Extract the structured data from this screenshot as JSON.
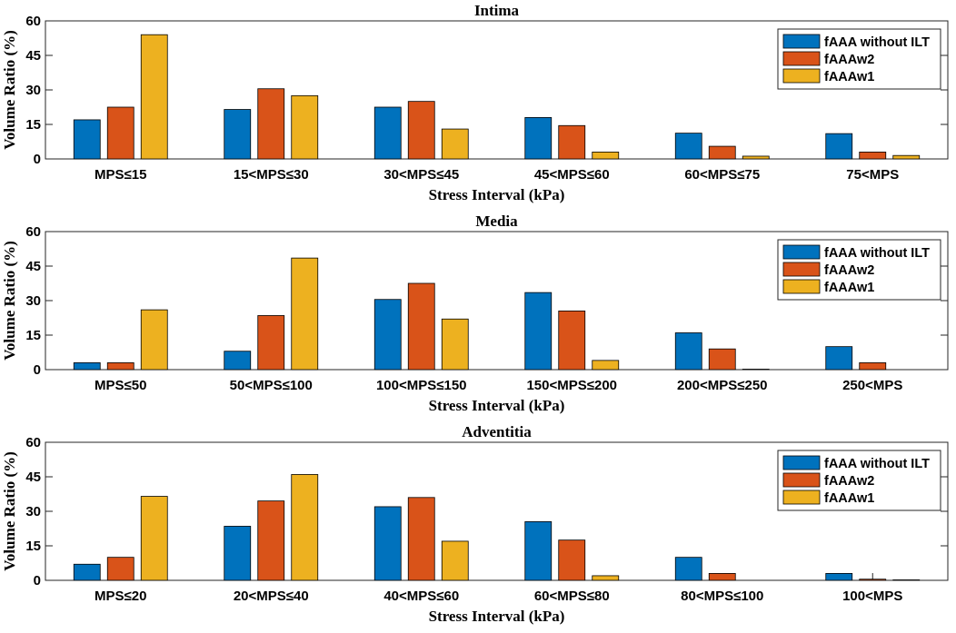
{
  "chart_data": [
    {
      "type": "bar",
      "title": "Intima",
      "xlabel": "Stress Interval (kPa)",
      "ylabel": "Volume Ratio (%)",
      "ylim": [
        0,
        60
      ],
      "yticks": [
        "0",
        "15",
        "30",
        "45",
        "60"
      ],
      "categories": [
        "MPS≤15",
        "15<MPS≤30",
        "30<MPS≤45",
        "45<MPS≤60",
        "60<MPS≤75",
        "75<MPS"
      ],
      "series": [
        {
          "name": "fAAA without ILT",
          "color": "#0072BD",
          "values": [
            17,
            21.5,
            22.5,
            18,
            11.2,
            11
          ]
        },
        {
          "name": "fAAAw2",
          "color": "#D95319",
          "values": [
            22.5,
            30.5,
            25,
            14.5,
            5.5,
            3
          ]
        },
        {
          "name": "fAAAw1",
          "color": "#EDB120",
          "values": [
            54,
            27.5,
            13,
            3,
            1.2,
            1.5
          ]
        }
      ],
      "legend": "top-right"
    },
    {
      "type": "bar",
      "title": "Media",
      "xlabel": "Stress Interval (kPa)",
      "ylabel": "Volume Ratio (%)",
      "ylim": [
        0,
        60
      ],
      "yticks": [
        "0",
        "15",
        "30",
        "45",
        "60"
      ],
      "categories": [
        "MPS≤50",
        "50<MPS≤100",
        "100<MPS≤150",
        "150<MPS≤200",
        "200<MPS≤250",
        "250<MPS"
      ],
      "series": [
        {
          "name": "fAAA without ILT",
          "color": "#0072BD",
          "values": [
            3,
            8,
            30.5,
            33.5,
            16,
            10
          ]
        },
        {
          "name": "fAAAw2",
          "color": "#D95319",
          "values": [
            3,
            23.5,
            37.5,
            25.5,
            9,
            3
          ]
        },
        {
          "name": "fAAAw1",
          "color": "#EDB120",
          "values": [
            26,
            48.5,
            22,
            4,
            0.2,
            0
          ]
        }
      ],
      "legend": "top-right"
    },
    {
      "type": "bar",
      "title": "Adventitia",
      "xlabel": "Stress Interval (kPa)",
      "ylabel": "Volume Ratio (%)",
      "ylim": [
        0,
        60
      ],
      "yticks": [
        "0",
        "15",
        "30",
        "45",
        "60"
      ],
      "categories": [
        "MPS≤20",
        "20<MPS≤40",
        "40<MPS≤60",
        "60<MPS≤80",
        "80<MPS≤100",
        "100<MPS"
      ],
      "series": [
        {
          "name": "fAAA without ILT",
          "color": "#0072BD",
          "values": [
            7,
            23.5,
            32,
            25.5,
            10,
            3
          ]
        },
        {
          "name": "fAAAw2",
          "color": "#D95319",
          "values": [
            10,
            34.5,
            36,
            17.5,
            3,
            0.5
          ]
        },
        {
          "name": "fAAAw1",
          "color": "#EDB120",
          "values": [
            36.5,
            46,
            17,
            2,
            0,
            0.2
          ]
        }
      ],
      "legend": "top-right"
    }
  ]
}
